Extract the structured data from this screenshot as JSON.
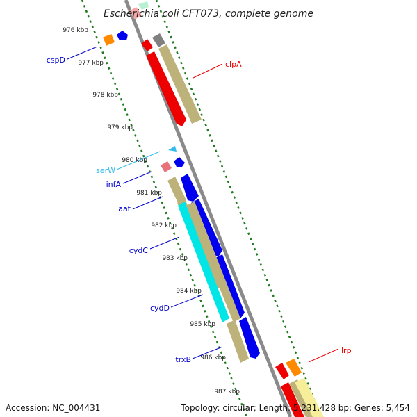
{
  "header": {
    "title": "Escherichia coli CFT073, complete genome"
  },
  "footer": {
    "accession": "Accession: NC_004431",
    "summary": "Topology: circular; Length: 5,231,428 bp; Genes: 5,454"
  },
  "scale": {
    "kbp_labels": [
      "976 kbp",
      "977 kbp",
      "978 kbp",
      "979 kbp",
      "980 kbp",
      "981 kbp",
      "982 kbp",
      "983 kbp",
      "984 kbp",
      "985 kbp",
      "986 kbp",
      "987 kbp"
    ]
  },
  "genes": [
    {
      "name": "cspD",
      "color": "#0000cc"
    },
    {
      "name": "clpA",
      "color": "#ee0000"
    },
    {
      "name": "serW",
      "color": "#33bbee"
    },
    {
      "name": "infA",
      "color": "#0000cc"
    },
    {
      "name": "aat",
      "color": "#0000cc"
    },
    {
      "name": "cydC",
      "color": "#0000cc"
    },
    {
      "name": "cydD",
      "color": "#0000cc"
    },
    {
      "name": "trxB",
      "color": "#0000cc"
    },
    {
      "name": "lrp",
      "color": "#ee0000"
    }
  ],
  "colors": {
    "backbone": "#888888",
    "gc_ticks": "#1f7a1f",
    "forward_strand": "#ee0000",
    "reverse_strand": "#0000ee",
    "rna": "#00dddd",
    "other_feature": "#bdb27a"
  }
}
